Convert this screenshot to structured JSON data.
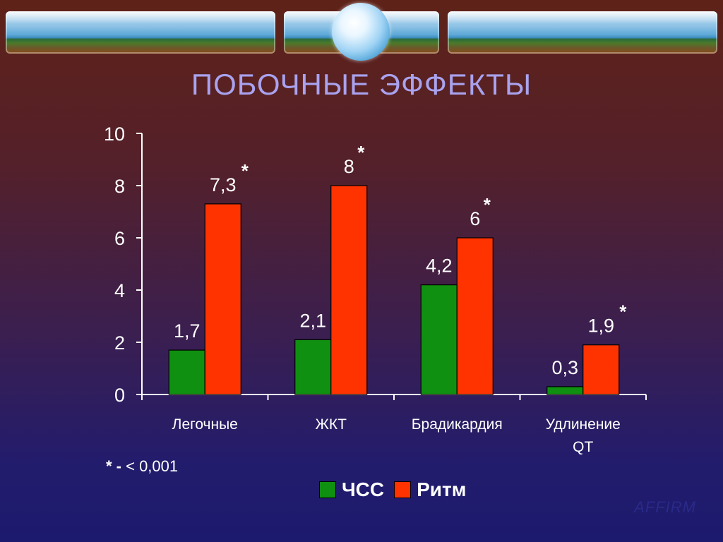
{
  "colors": {
    "series_1": "#109010",
    "series_2": "#ff3300",
    "text": "#ffffff",
    "title": "#a9a2ef"
  },
  "page": {
    "title": "ПОБОЧНЫЕ ЭФФЕКТЫ",
    "footnote_star": "* -",
    "footnote_text": " < 0,001",
    "watermark": "AFFIRM"
  },
  "chart_data": {
    "type": "bar",
    "categories": [
      "Легочные",
      "ЖКТ",
      "Брадикардия",
      "Удлинение QT"
    ],
    "series": [
      {
        "name": "ЧСС",
        "values": [
          1.7,
          2.1,
          4.2,
          0.3
        ],
        "labels": [
          "1,7",
          "2,1",
          "4,2",
          "0,3"
        ]
      },
      {
        "name": "Ритм",
        "values": [
          7.3,
          8,
          6,
          1.9
        ],
        "labels": [
          "7,3",
          "8",
          "6",
          "1,9"
        ]
      }
    ],
    "significance_marks": [
      "*",
      "*",
      "*",
      "*"
    ],
    "y_ticks": [
      "0",
      "2",
      "4",
      "6",
      "8",
      "10"
    ],
    "ylim": [
      0,
      10
    ],
    "legend_position": "bottom",
    "grid": false
  }
}
